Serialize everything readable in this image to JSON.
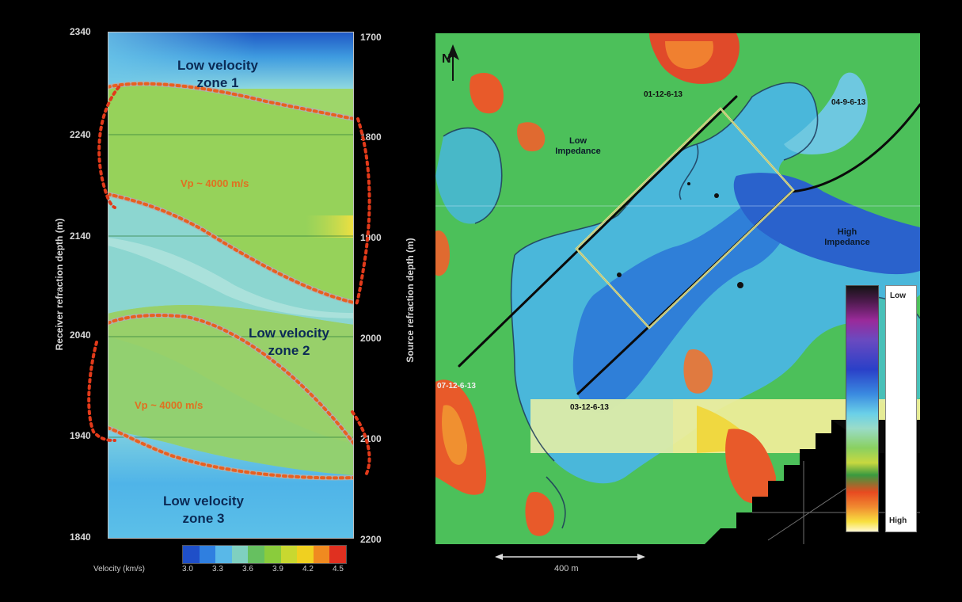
{
  "left_panel": {
    "left_axis_ticks": [
      "2340",
      "2240",
      "2140",
      "2040",
      "1940",
      "1840"
    ],
    "right_axis_ticks": [
      "1700",
      "1800",
      "1900",
      "2000",
      "2100",
      "2200"
    ],
    "left_axis_label": "Receiver refraction depth (m)",
    "right_axis_label": "Source refraction depth (m)",
    "zones": [
      {
        "line1": "Low velocity",
        "line2": "zone 1"
      },
      {
        "line1": "Low velocity",
        "line2": "zone 2"
      },
      {
        "line1": "Low velocity",
        "line2": "zone 3"
      }
    ],
    "velocity_labels": [
      "Vp ~ 4000 m/s",
      "Vp ~ 4000 m/s"
    ],
    "colorbar_label": "Velocity (km/s)",
    "colorbar_ticks": [
      "3.0",
      "3.3",
      "3.6",
      "3.9",
      "4.2",
      "4.5"
    ],
    "colorbar_colors": [
      "#1f4fc8",
      "#2f7fe0",
      "#59b8e8",
      "#7fd0c0",
      "#66c060",
      "#8acc3c",
      "#c8d830",
      "#f0d020",
      "#f08a20",
      "#e03020"
    ]
  },
  "right_panel": {
    "north_label": "N",
    "low_impedance": {
      "line1": "Low",
      "line2": "Impedance"
    },
    "high_impedance": {
      "line1": "High",
      "line2": "Impedance"
    },
    "wells": [
      "01-12-6-13",
      "04-9-6-13",
      "07-12-6-13",
      "03-12-6-13"
    ],
    "colorbar_top": "Low",
    "colorbar_bottom": "High",
    "scale_bar": "400 m"
  }
}
